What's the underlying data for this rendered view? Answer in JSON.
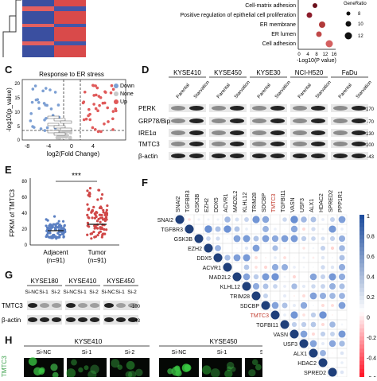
{
  "panels": {
    "C": "C",
    "D": "D",
    "E": "E",
    "F": "F",
    "G": "G",
    "H": "H"
  },
  "colors": {
    "down": "#7c9fd3",
    "none": "#c8c8c8",
    "up": "#e05a5a",
    "heat_blue": "#1f4e9e",
    "heat_red": "#b2182b",
    "tmtc3_red": "#c0392b"
  },
  "panel_b": {
    "terms": [
      "Cell-matrix adhesion",
      "Positive regulation of epithelial cell proliferation",
      "ER membrane",
      "ER lumen",
      "Cell adhesion"
    ],
    "xlabel": "-Log10(P value)",
    "xticks": [
      "0",
      "4",
      "8",
      "12",
      "16"
    ],
    "legend_title": "GeneRatio",
    "legend_values": [
      "8",
      "10",
      "12"
    ]
  },
  "panel_c": {
    "title": "Response to ER stress",
    "ylabel": "-log10(p_value)",
    "xlabel": "log2(Fold Change)",
    "xticks": [
      "-8",
      "-4",
      "0",
      "4"
    ],
    "yticks": [
      "0",
      "5",
      "10",
      "15",
      "20"
    ],
    "legend": [
      "Down",
      "None",
      "Up"
    ]
  },
  "panel_d": {
    "cell_lines": [
      "KYSE410",
      "KYSE450",
      "KYSE30",
      "NCI-H520",
      "FaDu"
    ],
    "conditions": [
      "Parental",
      "Starvation"
    ],
    "proteins": [
      "PERK",
      "GRP78/Bip",
      "IRE1α",
      "TMTC3",
      "β-actin"
    ],
    "mw": [
      "-170",
      "-70",
      "-130",
      "-100",
      "-43"
    ]
  },
  "panel_e": {
    "ylabel": "FPKM of TMTC3",
    "yticks": [
      "0",
      "20",
      "40",
      "60",
      "80"
    ],
    "significance": "***",
    "groups": [
      {
        "name": "Adjacent",
        "n": "(n=91)"
      },
      {
        "name": "Tumor",
        "n": "(n=91)"
      }
    ]
  },
  "panel_f": {
    "genes": [
      "SNAI2",
      "TGFBR3",
      "GSK3B",
      "EZH2",
      "DDX5",
      "ACVR1",
      "MAD2L2",
      "KLHL12",
      "TRIM28",
      "SDCBP",
      "TMTC3",
      "TGFBI11",
      "VASN",
      "USF3",
      "ALX1",
      "HDAC2",
      "SPRED2",
      "PPP1R1"
    ],
    "colorbar_ticks": [
      "1",
      "0.8",
      "0.6",
      "0.4",
      "0.2",
      "0",
      "-0.2",
      "-0.4",
      "-0.6"
    ]
  },
  "panel_g": {
    "cell_lines": [
      "KYSE180",
      "KYSE410",
      "KYSE450"
    ],
    "lanes": [
      "Si-NC",
      "Si-1",
      "Si-2"
    ],
    "proteins": [
      "TMTC3",
      "β-actin"
    ],
    "mw": [
      "-100",
      "-43"
    ]
  },
  "panel_h": {
    "cell_lines": [
      "KYSE410",
      "KYSE450"
    ],
    "lanes": [
      "Si-NC",
      "Si-1",
      "Si-2"
    ],
    "side_label": "TMTC3"
  }
}
